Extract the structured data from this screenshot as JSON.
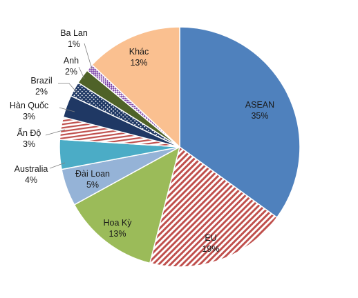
{
  "chart_data": {
    "type": "pie",
    "start_angle_deg": 0,
    "direction": "clockwise",
    "slices": [
      {
        "name": "ASEAN",
        "value": 35,
        "label": "35%",
        "color": "#4f81bd",
        "pattern": "solid"
      },
      {
        "name": "EU",
        "value": 19,
        "label": "19%",
        "color": "#c0504d",
        "pattern": "diagonal-stripes"
      },
      {
        "name": "Hoa Kỳ",
        "value": 13,
        "label": "13%",
        "color": "#9bbb59",
        "pattern": "solid"
      },
      {
        "name": "Đài Loan",
        "value": 5,
        "label": "5%",
        "color": "#95b3d7",
        "pattern": "solid"
      },
      {
        "name": "Australia",
        "value": 4,
        "label": "4%",
        "color": "#4bacc6",
        "pattern": "solid"
      },
      {
        "name": "Ấn Độ",
        "value": 3,
        "label": "3%",
        "color": "#c0504d",
        "pattern": "horizontal-stripes"
      },
      {
        "name": "Hàn Quốc",
        "value": 3,
        "label": "3%",
        "color": "#1f3864",
        "pattern": "solid"
      },
      {
        "name": "Brazil",
        "value": 2,
        "label": "2%",
        "color": "#1f3864",
        "pattern": "dots"
      },
      {
        "name": "Anh",
        "value": 2,
        "label": "2%",
        "color": "#4f6228",
        "pattern": "solid"
      },
      {
        "name": "Ba Lan",
        "value": 1,
        "label": "1%",
        "color": "#7030a0",
        "pattern": "checker"
      },
      {
        "name": "Khác",
        "value": 13,
        "label": "13%",
        "color": "#fac090",
        "pattern": "solid"
      }
    ]
  }
}
